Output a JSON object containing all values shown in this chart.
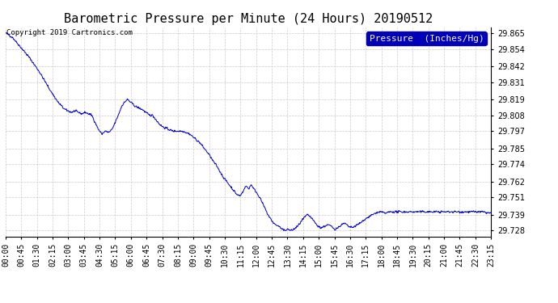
{
  "title": "Barometric Pressure per Minute (24 Hours) 20190512",
  "copyright": "Copyright 2019 Cartronics.com",
  "legend_label": "Pressure  (Inches/Hg)",
  "line_color": "#0000cc",
  "background_color": "#ffffff",
  "grid_color": "#cccccc",
  "yticks": [
    29.728,
    29.739,
    29.751,
    29.762,
    29.774,
    29.785,
    29.797,
    29.808,
    29.819,
    29.831,
    29.842,
    29.854,
    29.865
  ],
  "ylim": [
    29.724,
    29.869
  ],
  "xtick_labels": [
    "00:00",
    "00:45",
    "01:30",
    "02:15",
    "03:00",
    "03:45",
    "04:30",
    "05:15",
    "06:00",
    "06:45",
    "07:30",
    "08:15",
    "09:00",
    "09:45",
    "10:30",
    "11:15",
    "12:00",
    "12:45",
    "13:30",
    "14:15",
    "15:00",
    "15:45",
    "16:30",
    "17:15",
    "18:00",
    "18:45",
    "19:30",
    "20:15",
    "21:00",
    "21:45",
    "22:30",
    "23:15"
  ],
  "title_fontsize": 11,
  "tick_fontsize": 7,
  "legend_fontsize": 8,
  "copyright_fontsize": 6.5
}
